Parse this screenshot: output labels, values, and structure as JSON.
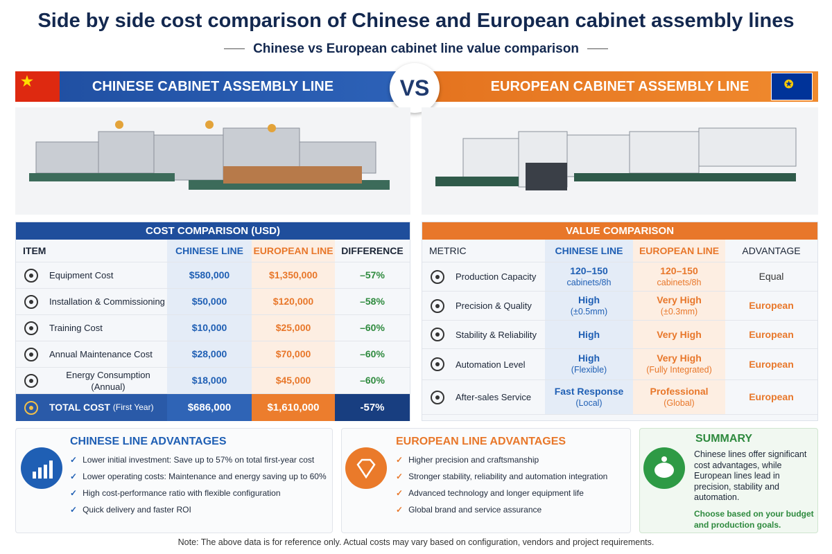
{
  "header": {
    "title": "Side by side cost comparison of Chinese and European cabinet assembly lines",
    "subtitle": "Chinese vs European cabinet line value comparison"
  },
  "banner": {
    "left": "CHINESE CABINET ASSEMBLY LINE",
    "vs": "VS",
    "right": "EUROPEAN CABINET ASSEMBLY LINE"
  },
  "cost_table": {
    "title": "COST COMPARISON (USD)",
    "columns": [
      "ITEM",
      "CHINESE LINE",
      "EUROPEAN LINE",
      "DIFFERENCE"
    ],
    "rows": [
      [
        "Equipment Cost",
        "$580,000",
        "$1,350,000",
        "–57%"
      ],
      [
        "Installation & Commissioning",
        "$50,000",
        "$120,000",
        "–58%"
      ],
      [
        "Training Cost",
        "$10,000",
        "$25,000",
        "–60%"
      ],
      [
        "Annual Maintenance Cost",
        "$28,000",
        "$70,000",
        "–60%"
      ],
      [
        "Energy Consumption (Annual)",
        "$18,000",
        "$45,000",
        "–60%"
      ]
    ],
    "total": {
      "label": "TOTAL COST",
      "note": "(First Year)",
      "values": [
        "$686,000",
        "$1,610,000",
        "-57%"
      ]
    }
  },
  "value_table": {
    "title": "VALUE COMPARISON",
    "columns": [
      "METRIC",
      "CHINESE LINE",
      "EUROPEAN LINE",
      "ADVANTAGE"
    ],
    "rows": [
      {
        "metric": "Production Capacity",
        "chinese": [
          "120–150",
          "cabinets/8h"
        ],
        "european": [
          "120–150",
          "cabinets/8h"
        ],
        "advantage": "Equal"
      },
      {
        "metric": "Precision & Quality",
        "chinese": [
          "High",
          "(±0.5mm)"
        ],
        "european": [
          "Very High",
          "(±0.3mm)"
        ],
        "advantage": "European"
      },
      {
        "metric": "Stability & Reliability",
        "chinese": [
          "High"
        ],
        "european": [
          "Very High"
        ],
        "advantage": "European"
      },
      {
        "metric": "Automation Level",
        "chinese": [
          "High",
          "(Flexible)"
        ],
        "european": [
          "Very High",
          "(Fully Integrated)"
        ],
        "advantage": "European"
      },
      {
        "metric": "After-sales Service",
        "chinese": [
          "Fast Response",
          "(Local)"
        ],
        "european": [
          "Professional",
          "(Global)"
        ],
        "advantage": "European"
      }
    ]
  },
  "advantages_cn": {
    "title": "CHINESE LINE ADVANTAGES",
    "items": [
      "Lower initial investment: Save up to 57% on total first-year cost",
      "Lower operating costs: Maintenance and energy saving up to 60%",
      "High cost-performance ratio with flexible configuration",
      "Quick delivery and faster ROI"
    ]
  },
  "advantages_eu": {
    "title": "EUROPEAN LINE ADVANTAGES",
    "items": [
      "Higher precision and craftsmanship",
      "Stronger stability, reliability and automation integration",
      "Advanced technology and longer equipment life",
      "Global brand and service assurance"
    ]
  },
  "summary": {
    "title": "SUMMARY",
    "text": "Chinese lines offer significant cost advantages, while European lines lead in precision, stability and automation.",
    "emphasis": "Choose based on your budget and production goals."
  },
  "note": "Note: The above data is for reference only. Actual costs may vary based on configuration, vendors and project requirements."
}
